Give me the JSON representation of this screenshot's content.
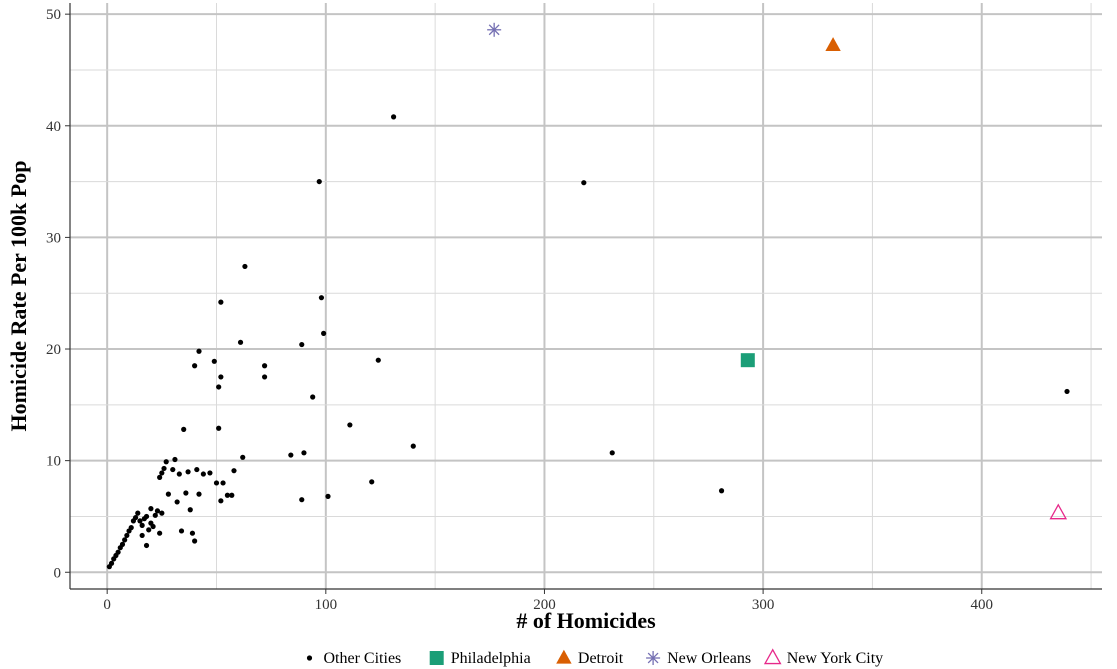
{
  "chart_data": {
    "type": "scatter",
    "xlabel": "# of Homicides",
    "ylabel": "Homicide Rate Per 100k Pop",
    "xlim": [
      -17,
      455
    ],
    "ylim": [
      -1.5,
      51
    ],
    "x_ticks": [
      0,
      100,
      200,
      300,
      400
    ],
    "y_ticks": [
      0,
      10,
      20,
      30,
      40,
      50
    ],
    "grid": true,
    "legend_position": "bottom",
    "series": [
      {
        "name": "Other Cities",
        "color": "#000000",
        "marker": "dot",
        "points": [
          [
            1,
            0.5
          ],
          [
            2,
            0.8
          ],
          [
            3,
            1.2
          ],
          [
            4,
            1.5
          ],
          [
            5,
            1.8
          ],
          [
            6,
            2.2
          ],
          [
            7,
            2.5
          ],
          [
            8,
            2.9
          ],
          [
            9,
            3.3
          ],
          [
            10,
            3.7
          ],
          [
            11,
            4.0
          ],
          [
            12,
            4.6
          ],
          [
            13,
            4.9
          ],
          [
            14,
            5.3
          ],
          [
            15,
            4.6
          ],
          [
            16,
            3.3
          ],
          [
            16,
            4.2
          ],
          [
            17,
            4.8
          ],
          [
            18,
            2.4
          ],
          [
            18,
            5.0
          ],
          [
            19,
            3.8
          ],
          [
            20,
            4.4
          ],
          [
            20,
            5.7
          ],
          [
            21,
            4.1
          ],
          [
            22,
            5.1
          ],
          [
            23,
            5.5
          ],
          [
            24,
            3.5
          ],
          [
            25,
            5.3
          ],
          [
            24,
            8.5
          ],
          [
            25,
            8.9
          ],
          [
            26,
            9.3
          ],
          [
            27,
            9.9
          ],
          [
            28,
            7.0
          ],
          [
            30,
            9.2
          ],
          [
            31,
            10.1
          ],
          [
            32,
            6.3
          ],
          [
            33,
            8.8
          ],
          [
            34,
            3.7
          ],
          [
            35,
            12.8
          ],
          [
            36,
            7.1
          ],
          [
            37,
            9.0
          ],
          [
            38,
            5.6
          ],
          [
            39,
            3.5
          ],
          [
            40,
            2.8
          ],
          [
            41,
            9.2
          ],
          [
            42,
            7.0
          ],
          [
            40,
            18.5
          ],
          [
            42,
            19.8
          ],
          [
            44,
            8.8
          ],
          [
            47,
            8.9
          ],
          [
            49,
            18.9
          ],
          [
            50,
            8.0
          ],
          [
            51,
            12.9
          ],
          [
            51,
            16.6
          ],
          [
            52,
            6.4
          ],
          [
            52,
            17.5
          ],
          [
            53,
            8.0
          ],
          [
            52,
            24.2
          ],
          [
            55,
            6.9
          ],
          [
            57,
            6.9
          ],
          [
            58,
            9.1
          ],
          [
            61,
            20.6
          ],
          [
            62,
            10.3
          ],
          [
            63,
            27.4
          ],
          [
            72,
            18.5
          ],
          [
            72,
            17.5
          ],
          [
            84,
            10.5
          ],
          [
            89,
            6.5
          ],
          [
            89,
            20.4
          ],
          [
            90,
            10.7
          ],
          [
            94,
            15.7
          ],
          [
            97,
            35.0
          ],
          [
            98,
            24.6
          ],
          [
            99,
            21.4
          ],
          [
            101,
            6.8
          ],
          [
            111,
            13.2
          ],
          [
            121,
            8.1
          ],
          [
            124,
            19.0
          ],
          [
            131,
            40.8
          ],
          [
            140,
            11.3
          ],
          [
            218,
            34.9
          ],
          [
            231,
            10.7
          ],
          [
            281,
            7.3
          ],
          [
            439,
            16.2
          ]
        ]
      },
      {
        "name": "Philadelphia",
        "color": "#1b9e77",
        "marker": "square",
        "points": [
          [
            293,
            19.0
          ]
        ]
      },
      {
        "name": "Detroit",
        "color": "#d95f02",
        "marker": "triangle",
        "points": [
          [
            332,
            47.2
          ]
        ]
      },
      {
        "name": "New Orleans",
        "color": "#7570b3",
        "marker": "asterisk",
        "points": [
          [
            177,
            48.6
          ]
        ]
      },
      {
        "name": "New York City",
        "color": "#e7298a",
        "marker": "triangle-open",
        "points": [
          [
            435,
            5.3
          ]
        ]
      }
    ]
  }
}
